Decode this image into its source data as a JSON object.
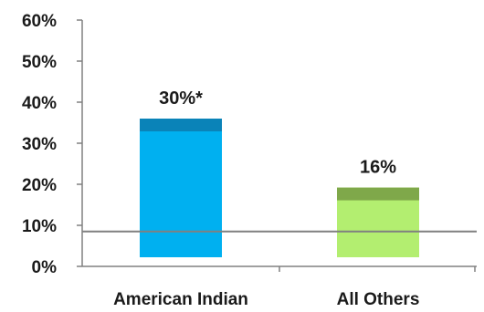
{
  "chart_data": {
    "type": "bar",
    "title": "",
    "xlabel": "",
    "ylabel": "",
    "categories": [
      "American Indian",
      "All Others"
    ],
    "values": [
      30,
      16
    ],
    "value_labels": [
      "30%*",
      "16%"
    ],
    "ylim": [
      0,
      60
    ],
    "yticks": [
      0,
      10,
      20,
      30,
      40,
      50,
      60
    ],
    "ytick_labels": [
      "0%",
      "10%",
      "20%",
      "30%",
      "40%",
      "50%",
      "60%"
    ],
    "reference_line": 8.5,
    "grid": false,
    "legend": "none",
    "colors": {
      "bars": [
        "#00b0f0",
        "#b3ee70"
      ],
      "bar_caps": [
        "#0a83b8",
        "#7fa84a"
      ],
      "axis": "#808080",
      "reference_line": "#808080"
    }
  }
}
